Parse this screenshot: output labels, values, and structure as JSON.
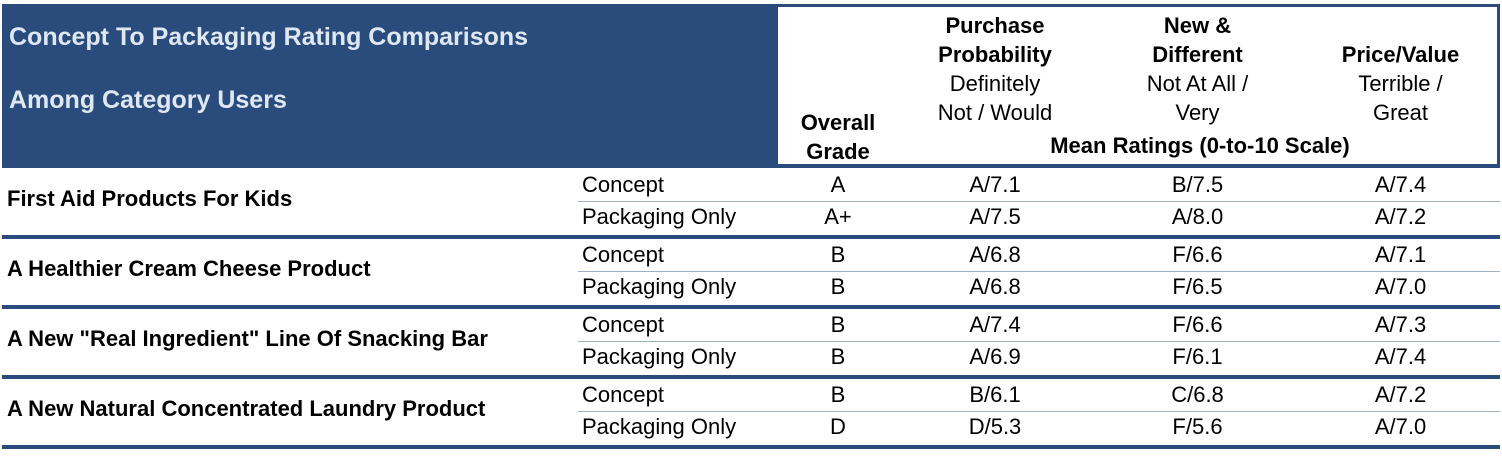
{
  "title": {
    "line1": "Concept To Packaging Rating Comparisons",
    "line2": "Among Category Users"
  },
  "columns": {
    "grade": {
      "line1": "Overall",
      "line2": "Grade"
    },
    "purchase": {
      "title1": "Purchase",
      "title2": "Probability",
      "sub1": "Definitely",
      "sub2": "Not / Would"
    },
    "new_different": {
      "title1": "New &",
      "title2": "Different",
      "sub1": "Not At All /",
      "sub2": "Very"
    },
    "price_value": {
      "title1": "Price/Value",
      "sub1": "Terrible /",
      "sub2": "Great"
    },
    "mean_ratings": "Mean Ratings (0-to-10 Scale)"
  },
  "colors": {
    "header_bg": "#2a4c7d",
    "title_text": "#dfe7f3",
    "row_line": "#9fb0cc"
  },
  "products": [
    {
      "name": "First Aid Products For Kids",
      "rows": [
        {
          "type": "Concept",
          "grade": "A",
          "purchase": "A/7.1",
          "new_different": "B/7.5",
          "price_value": "A/7.4"
        },
        {
          "type": "Packaging Only",
          "grade": "A+",
          "purchase": "A/7.5",
          "new_different": "A/8.0",
          "price_value": "A/7.2"
        }
      ]
    },
    {
      "name": "A Healthier Cream Cheese Product",
      "rows": [
        {
          "type": "Concept",
          "grade": "B",
          "purchase": "A/6.8",
          "new_different": "F/6.6",
          "price_value": "A/7.1"
        },
        {
          "type": "Packaging Only",
          "grade": "B",
          "purchase": "A/6.8",
          "new_different": "F/6.5",
          "price_value": "A/7.0"
        }
      ]
    },
    {
      "name": "A New \"Real Ingredient\" Line Of Snacking Bar",
      "rows": [
        {
          "type": "Concept",
          "grade": "B",
          "purchase": "A/7.4",
          "new_different": "F/6.6",
          "price_value": "A/7.3"
        },
        {
          "type": "Packaging Only",
          "grade": "B",
          "purchase": "A/6.9",
          "new_different": "F/6.1",
          "price_value": "A/7.4"
        }
      ]
    },
    {
      "name": "A New Natural Concentrated Laundry Product",
      "rows": [
        {
          "type": "Concept",
          "grade": "B",
          "purchase": "B/6.1",
          "new_different": "C/6.8",
          "price_value": "A/7.2"
        },
        {
          "type": "Packaging Only",
          "grade": "D",
          "purchase": "D/5.3",
          "new_different": "F/5.6",
          "price_value": "A/7.0"
        }
      ]
    }
  ]
}
